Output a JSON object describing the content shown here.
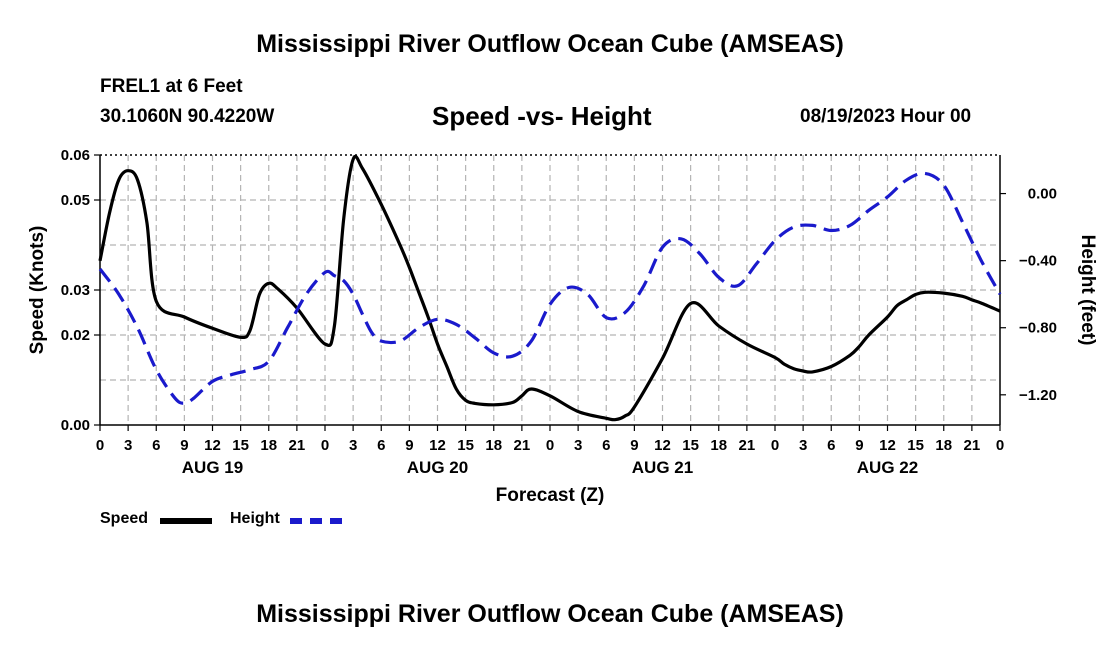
{
  "header": {
    "main_title": "Mississippi River Outflow Ocean Cube (AMSEAS)",
    "station": "FREL1 at 6 Feet",
    "location": "30.1060N  90.4220W",
    "plot_title": "Speed -vs- Height",
    "datetime": "08/19/2023 Hour 00",
    "footer_title": "Mississippi River Outflow Ocean Cube (AMSEAS)"
  },
  "legend": {
    "speed_label": "Speed",
    "height_label": "Height"
  },
  "colors": {
    "speed": "#000000",
    "height": "#1a1acc",
    "grid": "#b4b4b4"
  },
  "chart_data": {
    "type": "line",
    "xlabel": "Forecast (Z)",
    "ylabel": "Speed (Knots)",
    "y2label": "Height (feet)",
    "xlim": [
      0,
      96
    ],
    "ylim": [
      0.0,
      0.06
    ],
    "y2lim": [
      -1.38,
      0.23
    ],
    "x_ticks": [
      0,
      3,
      6,
      9,
      12,
      15,
      18,
      21,
      24,
      27,
      30,
      33,
      36,
      39,
      42,
      45,
      48,
      51,
      54,
      57,
      60,
      63,
      66,
      69,
      72,
      75,
      78,
      81,
      84,
      87,
      90,
      93,
      96
    ],
    "x_tick_labels": [
      "0",
      "3",
      "6",
      "9",
      "12",
      "15",
      "18",
      "21",
      "0",
      "3",
      "6",
      "9",
      "12",
      "15",
      "18",
      "21",
      "0",
      "3",
      "6",
      "9",
      "12",
      "15",
      "18",
      "21",
      "0",
      "3",
      "6",
      "9",
      "12",
      "15",
      "18",
      "21",
      "0"
    ],
    "day_labels": [
      {
        "x": 12,
        "label": "AUG 19"
      },
      {
        "x": 36,
        "label": "AUG 20"
      },
      {
        "x": 60,
        "label": "AUG 21"
      },
      {
        "x": 84,
        "label": "AUG 22"
      }
    ],
    "y_ticks": [
      0.0,
      0.02,
      0.03,
      0.05,
      0.06
    ],
    "y_tick_labels": [
      "0.00",
      "0.02",
      "0.03",
      "0.05",
      "0.06"
    ],
    "y2_ticks": [
      0.0,
      -0.4,
      -0.8,
      -1.2
    ],
    "y2_tick_labels": [
      "0.00",
      "−0.40",
      "−0.80",
      "−1.20"
    ],
    "series": [
      {
        "name": "Speed",
        "axis": "left",
        "style": "solid",
        "x": [
          0,
          1,
          2,
          3,
          4,
          5,
          6,
          9,
          12,
          15,
          16,
          17,
          18,
          19,
          21,
          24,
          25,
          26,
          27,
          28,
          30,
          32,
          33,
          34,
          35,
          36,
          37,
          38,
          39,
          40,
          42,
          44,
          45,
          46,
          48,
          51,
          54,
          55,
          56,
          57,
          60,
          63,
          66,
          69,
          72,
          73,
          74,
          75,
          76,
          78,
          80,
          81,
          82,
          84,
          85,
          86,
          87,
          88,
          90,
          92,
          93,
          94,
          96
        ],
        "y": [
          0.0365,
          0.047,
          0.0545,
          0.0565,
          0.0545,
          0.045,
          0.0275,
          0.024,
          0.0215,
          0.0195,
          0.021,
          0.029,
          0.0315,
          0.0302,
          0.026,
          0.018,
          0.022,
          0.046,
          0.059,
          0.057,
          0.049,
          0.04,
          0.035,
          0.0295,
          0.024,
          0.018,
          0.013,
          0.008,
          0.0055,
          0.0048,
          0.0045,
          0.005,
          0.0065,
          0.008,
          0.0065,
          0.003,
          0.0015,
          0.0012,
          0.002,
          0.004,
          0.0148,
          0.027,
          0.022,
          0.018,
          0.015,
          0.0135,
          0.0125,
          0.012,
          0.0118,
          0.013,
          0.0155,
          0.0175,
          0.02,
          0.024,
          0.0265,
          0.0278,
          0.029,
          0.0295,
          0.0293,
          0.0286,
          0.0278,
          0.0271,
          0.0253
        ],
        "z_note": "speed series"
      },
      {
        "name": "Height",
        "axis": "right",
        "style": "dashed",
        "x": [
          0,
          2,
          4,
          6,
          8,
          9,
          10,
          12,
          14,
          16,
          18,
          20,
          22,
          24,
          25,
          26,
          27,
          28,
          29,
          30,
          32,
          34,
          36,
          38,
          40,
          42,
          44,
          46,
          48,
          50,
          52,
          54,
          56,
          58,
          60,
          62,
          64,
          66,
          68,
          70,
          72,
          74,
          76,
          78,
          80,
          82,
          84,
          86,
          88,
          90,
          92,
          94,
          96
        ],
        "y": [
          -0.45,
          -0.6,
          -0.8,
          -1.05,
          -1.22,
          -1.25,
          -1.22,
          -1.12,
          -1.08,
          -1.05,
          -1.0,
          -0.8,
          -0.6,
          -0.47,
          -0.49,
          -0.52,
          -0.6,
          -0.72,
          -0.83,
          -0.88,
          -0.88,
          -0.8,
          -0.75,
          -0.78,
          -0.86,
          -0.95,
          -0.97,
          -0.88,
          -0.66,
          -0.56,
          -0.6,
          -0.74,
          -0.71,
          -0.55,
          -0.32,
          -0.27,
          -0.36,
          -0.5,
          -0.55,
          -0.42,
          -0.28,
          -0.2,
          -0.19,
          -0.22,
          -0.19,
          -0.1,
          -0.02,
          0.08,
          0.12,
          0.05,
          -0.17,
          -0.4,
          -0.6
        ]
      }
    ]
  }
}
